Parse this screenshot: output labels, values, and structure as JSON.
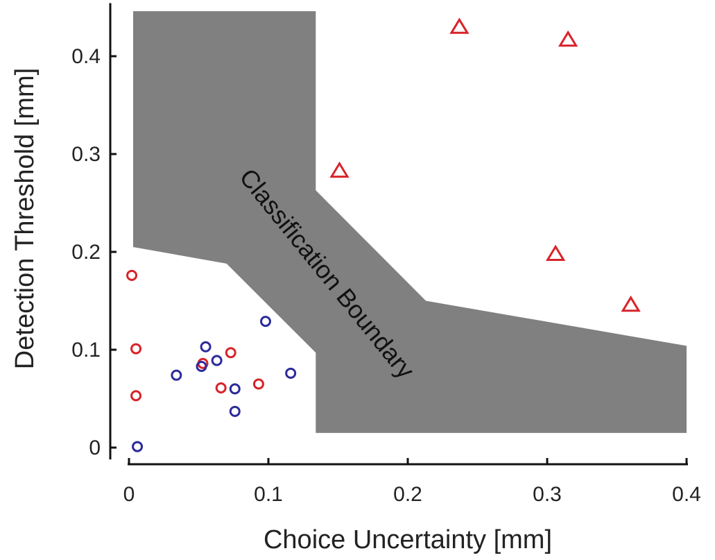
{
  "chart_data": {
    "type": "scatter",
    "title": "",
    "xlabel": "Choice Uncertainty [mm]",
    "ylabel": "Detection Threshold [mm]",
    "xlim": [
      0,
      0.4
    ],
    "ylim": [
      -0.01,
      0.45
    ],
    "xticks": [
      {
        "value": 0,
        "label": "0"
      },
      {
        "value": 0.1,
        "label": "0.1"
      },
      {
        "value": 0.2,
        "label": "0.2"
      },
      {
        "value": 0.3,
        "label": "0.3"
      },
      {
        "value": 0.4,
        "label": "0.4"
      }
    ],
    "yticks": [
      {
        "value": 0,
        "label": "0"
      },
      {
        "value": 0.1,
        "label": "0.1"
      },
      {
        "value": 0.2,
        "label": "0.2"
      },
      {
        "value": 0.3,
        "label": "0.3"
      },
      {
        "value": 0.4,
        "label": "0.4"
      }
    ],
    "grid": false,
    "boundary": {
      "label": "Classification Boundary",
      "color": "#808080",
      "upper_edge": [
        [
          0.003,
          0.446
        ],
        [
          0.134,
          0.446
        ],
        [
          0.134,
          0.263
        ],
        [
          0.213,
          0.15
        ],
        [
          0.4,
          0.104
        ]
      ],
      "lower_edge": [
        [
          0.003,
          0.205
        ],
        [
          0.07,
          0.188
        ],
        [
          0.134,
          0.097
        ],
        [
          0.134,
          0.015
        ],
        [
          0.4,
          0.015
        ]
      ]
    },
    "series": [
      {
        "marker": "circle",
        "color": "#d8232a",
        "points": [
          [
            0.002,
            0.176
          ],
          [
            0.005,
            0.101
          ],
          [
            0.005,
            0.053
          ],
          [
            0.053,
            0.086
          ],
          [
            0.073,
            0.097
          ],
          [
            0.066,
            0.061
          ],
          [
            0.093,
            0.065
          ]
        ]
      },
      {
        "marker": "circle",
        "color": "#2b2b9a",
        "points": [
          [
            0.006,
            0.001
          ],
          [
            0.034,
            0.074
          ],
          [
            0.052,
            0.083
          ],
          [
            0.055,
            0.103
          ],
          [
            0.063,
            0.089
          ],
          [
            0.076,
            0.06
          ],
          [
            0.076,
            0.037
          ],
          [
            0.098,
            0.129
          ],
          [
            0.116,
            0.076
          ]
        ]
      },
      {
        "marker": "triangle",
        "color": "#d8232a",
        "points": [
          [
            0.151,
            0.282
          ],
          [
            0.237,
            0.429
          ],
          [
            0.315,
            0.416
          ],
          [
            0.306,
            0.197
          ],
          [
            0.36,
            0.145
          ]
        ]
      }
    ]
  }
}
